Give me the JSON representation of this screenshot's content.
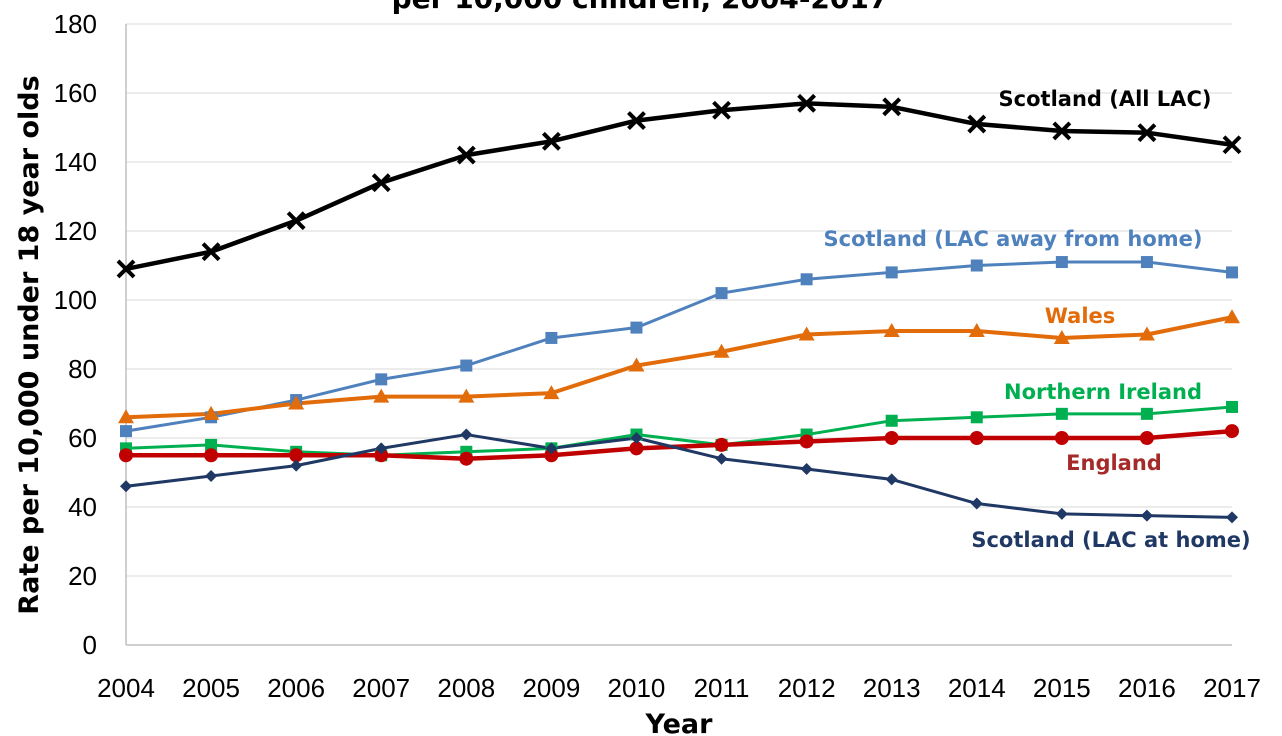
{
  "chart_data": {
    "type": "line",
    "title": "per 10,000 children, 2004-2017",
    "xlabel": "Year",
    "ylabel": "Rate per 10,000 under 18 year olds",
    "ylim": [
      0,
      180
    ],
    "yticks": [
      0,
      20,
      40,
      60,
      80,
      100,
      120,
      140,
      160,
      180
    ],
    "grid": true,
    "x": [
      "2004",
      "2005",
      "2006",
      "2007",
      "2008",
      "2009",
      "2010",
      "2011",
      "2012",
      "2013",
      "2014",
      "2015",
      "2016",
      "2017"
    ],
    "series": [
      {
        "name": "Scotland (All LAC)",
        "color": "#000000",
        "marker": "x",
        "values": [
          109,
          114,
          123,
          134,
          142,
          146,
          152,
          155,
          157,
          156,
          151,
          149,
          148.5,
          145
        ]
      },
      {
        "name": "Scotland (LAC away from home)",
        "color": "#4F81BD",
        "marker": "square",
        "values": [
          62,
          66,
          71,
          77,
          81,
          89,
          92,
          102,
          106,
          108,
          110,
          111,
          111,
          108
        ]
      },
      {
        "name": "Wales",
        "color": "#E36C0A",
        "marker": "triangle",
        "values": [
          66,
          67,
          70,
          72,
          72,
          73,
          81,
          85,
          90,
          91,
          91,
          89,
          90,
          95
        ]
      },
      {
        "name": "Northern Ireland",
        "color": "#00B050",
        "marker": "square",
        "values": [
          57,
          58,
          56,
          55,
          56,
          57,
          61,
          58,
          61,
          65,
          66,
          67,
          67,
          69
        ]
      },
      {
        "name": "England",
        "color": "#C00000",
        "marker": "circle",
        "values": [
          55,
          55,
          55,
          55,
          54,
          55,
          57,
          58,
          59,
          60,
          60,
          60,
          60,
          62
        ]
      },
      {
        "name": "Scotland (LAC at home)",
        "color": "#1F3864",
        "marker": "diamond",
        "values": [
          46,
          49,
          52,
          57,
          61,
          57,
          60,
          54,
          51,
          48,
          41,
          38,
          37.5,
          37
        ]
      }
    ],
    "labels": [
      {
        "series": 0,
        "text": "Scotland (All LAC)",
        "color": "#000000"
      },
      {
        "series": 1,
        "text": "Scotland (LAC away from home)",
        "color": "#4F81BD"
      },
      {
        "series": 2,
        "text": "Wales",
        "color": "#E36C0A"
      },
      {
        "series": 3,
        "text": "Northern Ireland",
        "color": "#00B050"
      },
      {
        "series": 4,
        "text": "England",
        "color": "#A52A2A"
      },
      {
        "series": 5,
        "text": "Scotland (LAC at home)",
        "color": "#1F3864"
      }
    ]
  }
}
